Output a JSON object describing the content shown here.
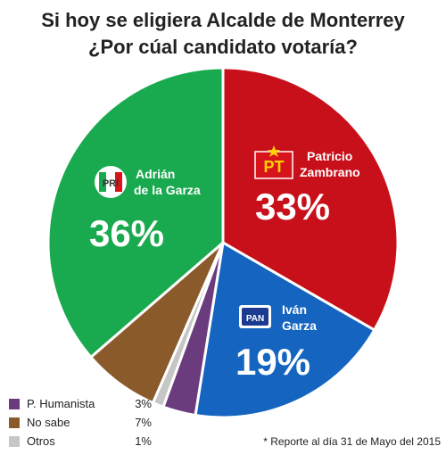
{
  "chart_data": {
    "type": "pie",
    "title": "Si hoy se eligiera Alcalde de Monterrey",
    "subtitle": "¿Por cúal candidato votaría?",
    "slices": [
      {
        "name": "Patricio Zambrano",
        "party": "PT",
        "value": 33,
        "label": "33%",
        "color": "#c8101a"
      },
      {
        "name": "Iván Garza",
        "party": "PAN",
        "value": 19,
        "label": "19%",
        "color": "#1565c0"
      },
      {
        "name": "P. Humanista",
        "value": 3,
        "label": "3%",
        "color": "#6b3c7d"
      },
      {
        "name": "Otros",
        "value": 1,
        "label": "1%",
        "color": "#c6c6c6"
      },
      {
        "name": "No sabe",
        "value": 7,
        "label": "7%",
        "color": "#8b5a2b"
      },
      {
        "name": "Adrián de la Garza",
        "party": "PRI",
        "value": 36,
        "label": "36%",
        "color": "#19a94e"
      }
    ],
    "legend": [
      {
        "name": "P. Humanista",
        "label": "3%",
        "color": "#6b3c7d"
      },
      {
        "name": "No sabe",
        "label": "7%",
        "color": "#8b5a2b"
      },
      {
        "name": "Otros",
        "label": "1%",
        "color": "#c6c6c6"
      }
    ],
    "footnote": "* Reporte al día 31 de Mayo del 2015"
  },
  "labels": {
    "pt": {
      "line1": "Patricio",
      "line2": "Zambrano",
      "logo_text": "PT",
      "icon": "star-icon"
    },
    "pan": {
      "line1": "Iván",
      "line2": "Garza",
      "logo_text": "PAN"
    },
    "pri": {
      "line1": "Adrián",
      "line2": "de la Garza",
      "logo_text": "PRI"
    }
  }
}
